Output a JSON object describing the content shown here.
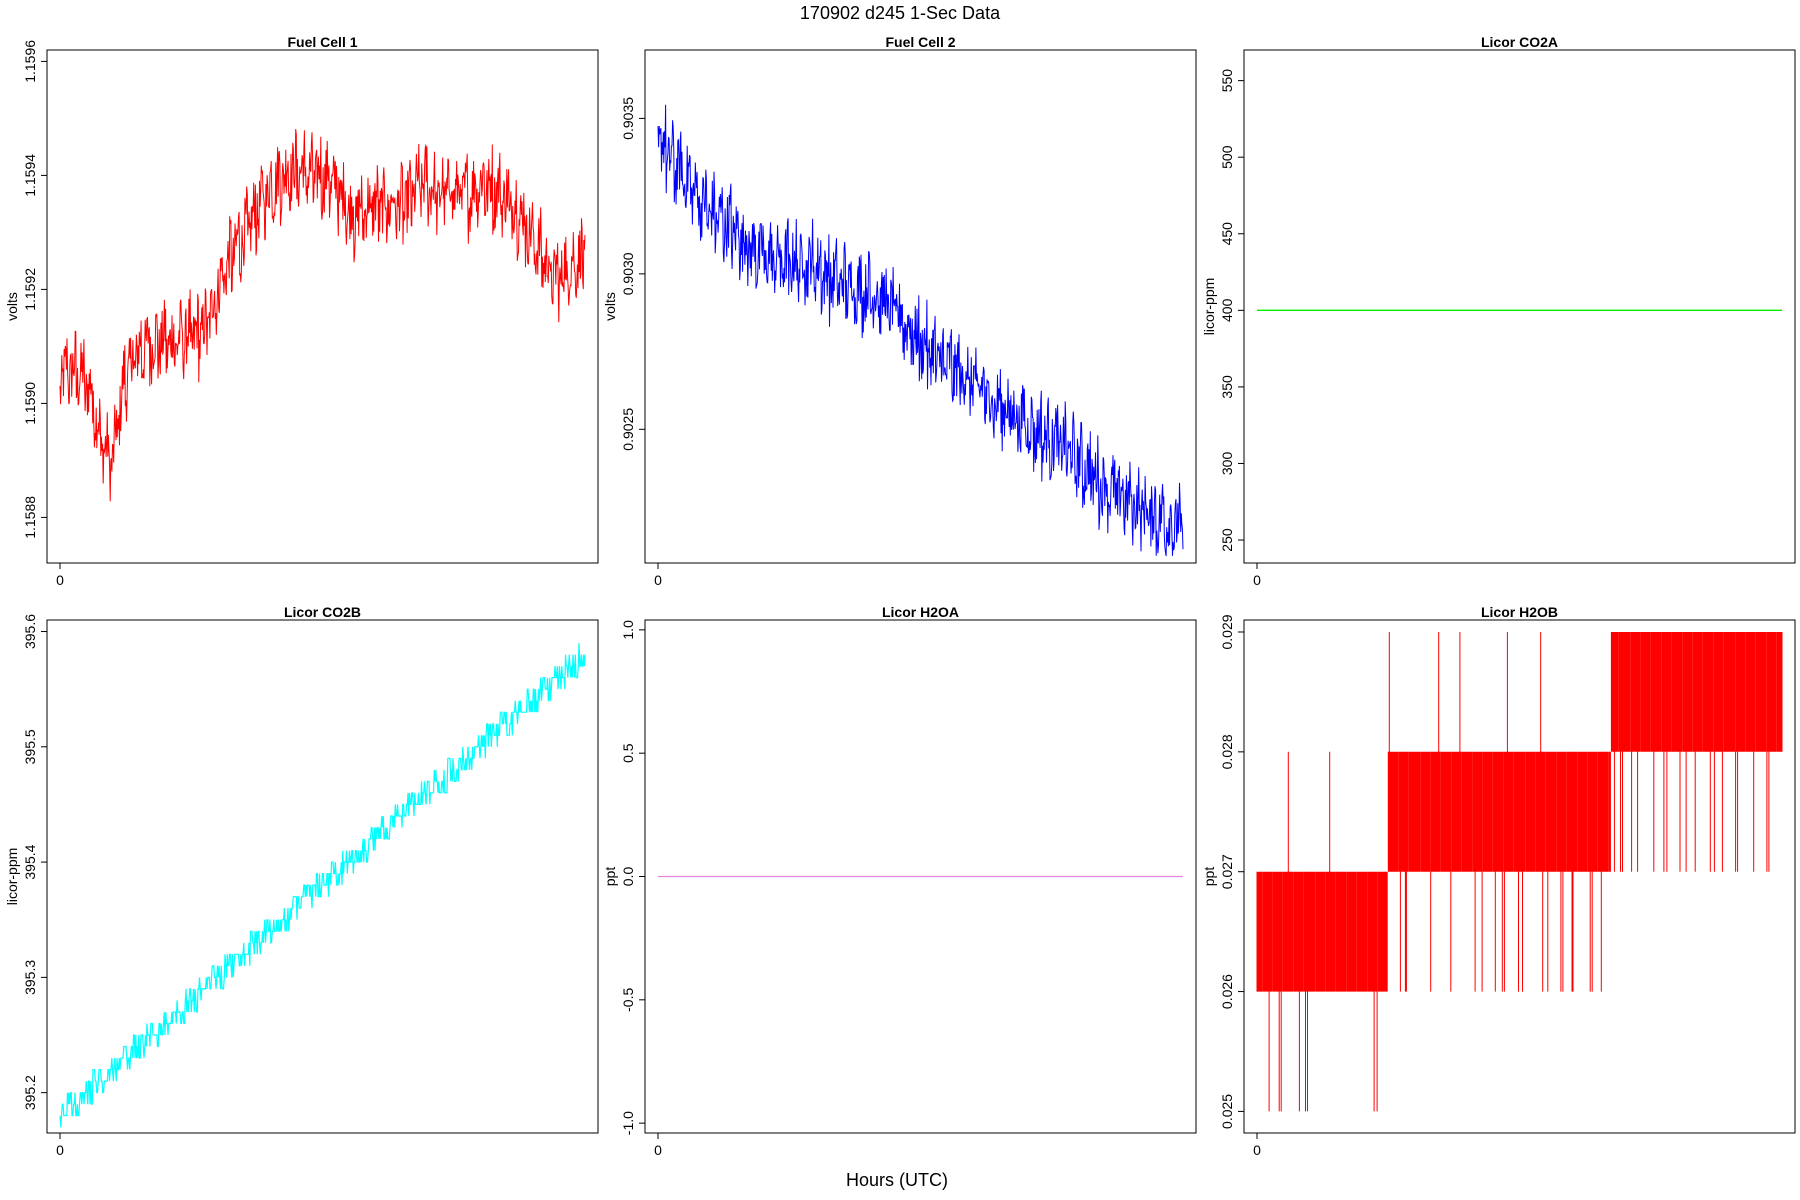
{
  "page": {
    "title": "170902   d245   1-Sec Data",
    "xlabel": "Hours (UTC)"
  },
  "chart_data": [
    {
      "type": "line",
      "title": "Fuel Cell 1",
      "ylabel": "volts",
      "color": "#ff0000",
      "xlim": [
        0,
        1.0
      ],
      "ylim": [
        1.15872,
        1.15962
      ],
      "x_ticks": [
        0
      ],
      "y_ticks": [
        1.1588,
        1.159,
        1.1592,
        1.1594,
        1.1596
      ],
      "y_tick_labels": [
        "1.1588",
        "1.1590",
        "1.1592",
        "1.1594",
        "1.1596"
      ],
      "x": [
        0,
        0.02,
        0.04,
        0.06,
        0.08,
        0.1,
        0.12,
        0.14,
        0.16,
        0.18,
        0.2,
        0.22,
        0.24,
        0.26,
        0.28,
        0.3,
        0.32,
        0.34,
        0.36,
        0.38,
        0.4,
        0.42,
        0.44,
        0.46,
        0.48,
        0.5,
        0.52,
        0.54,
        0.56,
        0.58,
        0.6,
        0.62,
        0.64,
        0.66,
        0.68,
        0.7,
        0.72,
        0.74,
        0.76,
        0.78,
        0.8,
        0.82,
        0.84,
        0.86,
        0.88,
        0.9,
        0.92,
        0.94,
        0.96,
        0.98,
        1.0
      ],
      "values": [
        1.15905,
        1.15906,
        1.15905,
        1.15902,
        1.15893,
        1.1589,
        1.15903,
        1.15908,
        1.1591,
        1.15911,
        1.15911,
        1.15911,
        1.15912,
        1.15912,
        1.15914,
        1.1592,
        1.15925,
        1.15928,
        1.15931,
        1.15935,
        1.15938,
        1.1594,
        1.15941,
        1.15941,
        1.1594,
        1.1594,
        1.15939,
        1.15936,
        1.15933,
        1.15934,
        1.15935,
        1.15935,
        1.15935,
        1.15935,
        1.15938,
        1.15939,
        1.15936,
        1.15938,
        1.15937,
        1.15937,
        1.15939,
        1.15938,
        1.15937,
        1.15935,
        1.15933,
        1.15929,
        1.15926,
        1.15922,
        1.15923,
        1.15925,
        1.15926
      ]
    },
    {
      "type": "line",
      "title": "Fuel Cell 2",
      "ylabel": "volts",
      "color": "#0000ff",
      "xlim": [
        0,
        1.0
      ],
      "ylim": [
        0.90207,
        0.90372
      ],
      "x_ticks": [
        0
      ],
      "y_ticks": [
        0.9025,
        0.903,
        0.9035
      ],
      "y_tick_labels": [
        "0.9025",
        "0.9030",
        "0.9035"
      ],
      "x": [
        0,
        0.02,
        0.04,
        0.06,
        0.08,
        0.1,
        0.12,
        0.14,
        0.16,
        0.18,
        0.2,
        0.22,
        0.24,
        0.26,
        0.28,
        0.3,
        0.32,
        0.34,
        0.36,
        0.38,
        0.4,
        0.42,
        0.44,
        0.46,
        0.48,
        0.5,
        0.52,
        0.54,
        0.56,
        0.58,
        0.6,
        0.62,
        0.64,
        0.66,
        0.68,
        0.7,
        0.72,
        0.74,
        0.76,
        0.78,
        0.8,
        0.82,
        0.84,
        0.86,
        0.88,
        0.9,
        0.92,
        0.94,
        0.96,
        0.98,
        1.0
      ],
      "values": [
        0.90345,
        0.90338,
        0.90334,
        0.9033,
        0.90324,
        0.9032,
        0.90318,
        0.90315,
        0.90312,
        0.90308,
        0.90306,
        0.90305,
        0.90304,
        0.90304,
        0.90304,
        0.90303,
        0.903,
        0.90298,
        0.90297,
        0.90296,
        0.90295,
        0.90293,
        0.9029,
        0.90287,
        0.90282,
        0.90278,
        0.90275,
        0.90272,
        0.9027,
        0.90268,
        0.90265,
        0.90262,
        0.90259,
        0.90257,
        0.90255,
        0.90252,
        0.9025,
        0.90248,
        0.90246,
        0.90244,
        0.9024,
        0.90237,
        0.90234,
        0.90231,
        0.90229,
        0.90227,
        0.90225,
        0.90223,
        0.90222,
        0.9022,
        0.90219
      ]
    },
    {
      "type": "line",
      "title": "Licor CO2A",
      "ylabel": "licor-ppm",
      "color": "#00ee00",
      "xlim": [
        0,
        1.0
      ],
      "ylim": [
        235,
        570
      ],
      "x_ticks": [
        0
      ],
      "y_ticks": [
        250,
        300,
        350,
        400,
        450,
        500,
        550
      ],
      "y_tick_labels": [
        "250",
        "300",
        "350",
        "400",
        "450",
        "500",
        "550"
      ],
      "x": [
        0,
        1.0
      ],
      "values": [
        400,
        400
      ]
    },
    {
      "type": "line",
      "title": "Licor CO2B",
      "ylabel": "licor-ppm",
      "color": "#00ffff",
      "xlim": [
        0,
        1.0
      ],
      "ylim": [
        395.165,
        395.61
      ],
      "x_ticks": [
        0
      ],
      "y_ticks": [
        395.2,
        395.3,
        395.4,
        395.5,
        395.6
      ],
      "y_tick_labels": [
        "395.2",
        "395.3",
        "395.4",
        "395.5",
        "395.6"
      ],
      "x": [
        0,
        0.1,
        0.2,
        0.3,
        0.4,
        0.5,
        0.6,
        0.7,
        0.8,
        0.9,
        1.0
      ],
      "values": [
        395.18,
        395.22,
        395.26,
        395.3,
        395.34,
        395.38,
        395.42,
        395.46,
        395.5,
        395.54,
        395.58
      ]
    },
    {
      "type": "line",
      "title": "Licor H2OA",
      "ylabel": "ppt",
      "color": "#dd88dd",
      "xlim": [
        0,
        1.0
      ],
      "ylim": [
        -1.04,
        1.04
      ],
      "x_ticks": [
        0
      ],
      "y_ticks": [
        -1.0,
        -0.5,
        0.0,
        0.5,
        1.0
      ],
      "y_tick_labels": [
        "-1.0",
        "-0.5",
        "0.0",
        "0.5",
        "1.0"
      ],
      "x": [
        0,
        1.0
      ],
      "values": [
        0,
        0
      ]
    },
    {
      "type": "line",
      "title": "Licor H2OB",
      "ylabel": "ppt",
      "color": "#ff0000",
      "xlim": [
        0,
        1.0
      ],
      "ylim": [
        0.02482,
        0.0291
      ],
      "x_ticks": [
        0
      ],
      "y_ticks": [
        0.025,
        0.026,
        0.027,
        0.028,
        0.029
      ],
      "y_tick_labels": [
        "0.025",
        "0.026",
        "0.027",
        "0.028",
        "0.029"
      ],
      "x": [
        0,
        0.1,
        0.2,
        0.3,
        0.4,
        0.5,
        0.6,
        0.65,
        0.7,
        0.8,
        0.9,
        1.0
      ],
      "values": [
        0.0265,
        0.0265,
        0.0268,
        0.0272,
        0.0275,
        0.0275,
        0.0276,
        0.0278,
        0.0282,
        0.0285,
        0.0285,
        0.0285
      ]
    }
  ]
}
